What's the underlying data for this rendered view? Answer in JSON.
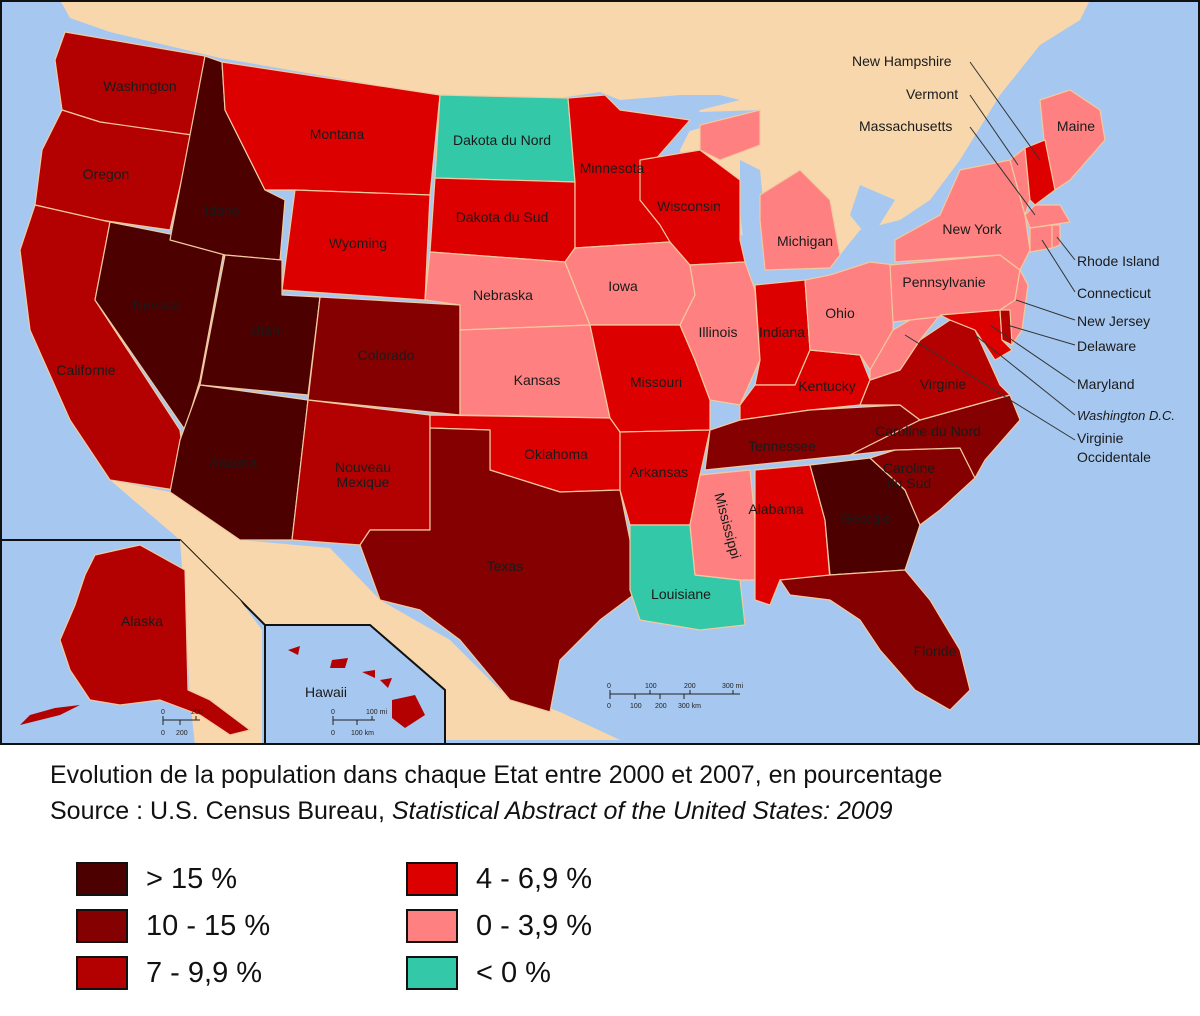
{
  "colors": {
    "ocean": "#a6c8f0",
    "land_other": "#f8d7ac",
    "border": "#f2c9a0",
    "gt15": "#4d0000",
    "c10_15": "#850000",
    "c7_10": "#b30000",
    "c4_7": "#dd0000",
    "c0_4": "#ff8080",
    "neg": "#33c9a8"
  },
  "states": {
    "washington": "Washington",
    "oregon": "Oregon",
    "california": "Californie",
    "nevada": "Nevada",
    "idaho": "Idaho",
    "montana": "Montana",
    "wyoming": "Wyoming",
    "utah": "Utah",
    "colorado": "Colorado",
    "arizona": "Arizona",
    "new_mexico": "Nouveau Mexique",
    "north_dakota": "Dakota du Nord",
    "south_dakota": "Dakota du Sud",
    "nebraska": "Nebraska",
    "kansas": "Kansas",
    "oklahoma": "Oklahoma",
    "texas": "Texas",
    "minnesota": "Minnesota",
    "iowa": "Iowa",
    "missouri": "Missouri",
    "arkansas": "Arkansas",
    "louisiana": "Louisiane",
    "wisconsin": "Wisconsin",
    "illinois": "Illinois",
    "mississippi": "Mississippi",
    "michigan": "Michigan",
    "indiana": "Indiana",
    "kentucky": "Kentucky",
    "tennessee": "Tennessee",
    "alabama": "Alabama",
    "ohio": "Ohio",
    "georgia": "Georgie",
    "florida": "Floride",
    "south_carolina": "Caroline du Sud",
    "north_carolina": "Caroline du Nord",
    "virginia": "Virginie",
    "pennsylvania": "Pennsylvanie",
    "new_york": "New York",
    "maine": "Maine",
    "alaska": "Alaska",
    "hawaii": "Hawaii"
  },
  "callouts": {
    "new_hampshire": "New Hampshire",
    "vermont": "Vermont",
    "massachusetts": "Massachusetts",
    "rhode_island": "Rhode Island",
    "connecticut": "Connecticut",
    "new_jersey": "New Jersey",
    "delaware": "Delaware",
    "maryland": "Maryland",
    "washington_dc": "Washington D.C.",
    "west_virginia_1": "Virginie",
    "west_virginia_2": "Occidentale"
  },
  "scales": {
    "main": {
      "mi": [
        "0",
        "100",
        "200",
        "300 mi"
      ],
      "km": [
        "0",
        "100",
        "200",
        "300 km"
      ]
    },
    "alaska": {
      "top": [
        "0",
        "200"
      ],
      "bottom": [
        "0",
        "200"
      ]
    },
    "hawaii": {
      "mi": [
        "0",
        "100 mi"
      ],
      "km": [
        "0",
        "100 km"
      ]
    }
  },
  "caption": {
    "line1": "Evolution de la population dans chaque Etat entre 2000 et 2007, en pourcentage",
    "line2_prefix": "Source : U.S. Census Bureau, ",
    "line2_title": "Statistical Abstract of the United States: 2009"
  },
  "legend": [
    {
      "label": "> 15 %",
      "color": "#4d0000"
    },
    {
      "label": "10 - 15 %",
      "color": "#850000"
    },
    {
      "label": "7 - 9,9 %",
      "color": "#b30000"
    },
    {
      "label": "4 - 6,9 %",
      "color": "#dd0000"
    },
    {
      "label": "0 - 3,9 %",
      "color": "#ff8080"
    },
    {
      "label": "< 0 %",
      "color": "#33c9a8"
    }
  ]
}
